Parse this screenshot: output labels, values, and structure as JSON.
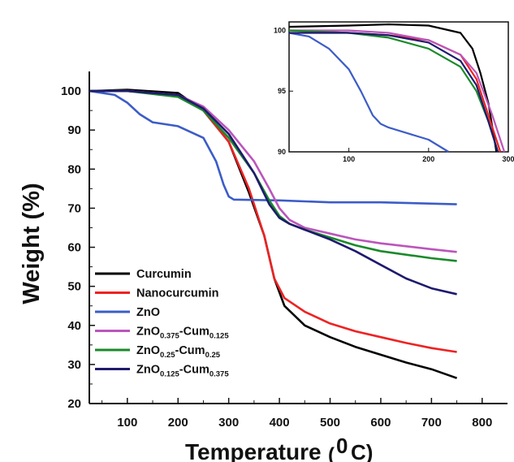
{
  "chart_data": [
    {
      "type": "line",
      "xlabel": "Temperature",
      "xlabel_unit": "(0C)",
      "ylabel": "Weight (%)",
      "xlim": [
        25,
        850
      ],
      "ylim": [
        20,
        105
      ],
      "x_ticks": [
        "100",
        "200",
        "300",
        "400",
        "500",
        "600",
        "700",
        "800"
      ],
      "y_ticks": [
        "20",
        "30",
        "40",
        "50",
        "60",
        "70",
        "80",
        "90",
        "100"
      ],
      "legend_position": "bottom-left",
      "series": [
        {
          "name": "Curcumin",
          "color": "#000000",
          "points": [
            [
              25,
              100
            ],
            [
              100,
              100.3
            ],
            [
              200,
              99.5
            ],
            [
              250,
              95
            ],
            [
              300,
              87
            ],
            [
              340,
              74
            ],
            [
              370,
              63
            ],
            [
              390,
              52
            ],
            [
              410,
              45
            ],
            [
              450,
              40
            ],
            [
              500,
              37
            ],
            [
              550,
              34.5
            ],
            [
              600,
              32.5
            ],
            [
              650,
              30.5
            ],
            [
              700,
              28.8
            ],
            [
              750,
              26.5
            ]
          ]
        },
        {
          "name": "Nanocurcumin",
          "color": "#ee2222",
          "points": [
            [
              25,
              100
            ],
            [
              100,
              100
            ],
            [
              200,
              99
            ],
            [
              250,
              95
            ],
            [
              300,
              87
            ],
            [
              340,
              75
            ],
            [
              370,
              63
            ],
            [
              390,
              52
            ],
            [
              410,
              47
            ],
            [
              450,
              43.5
            ],
            [
              500,
              40.5
            ],
            [
              550,
              38.5
            ],
            [
              600,
              37
            ],
            [
              650,
              35.5
            ],
            [
              700,
              34.2
            ],
            [
              750,
              33.2
            ]
          ]
        },
        {
          "name": "ZnO",
          "color": "#3c5cc8",
          "points": [
            [
              25,
              100
            ],
            [
              75,
              99
            ],
            [
              100,
              97
            ],
            [
              125,
              94
            ],
            [
              150,
              92
            ],
            [
              200,
              91
            ],
            [
              250,
              88
            ],
            [
              275,
              82
            ],
            [
              290,
              76
            ],
            [
              300,
              73
            ],
            [
              310,
              72.2
            ],
            [
              400,
              72
            ],
            [
              500,
              71.5
            ],
            [
              600,
              71.5
            ],
            [
              750,
              71
            ]
          ]
        },
        {
          "name": "ZnO0.375-Cum0.125",
          "color": "#bb55bb",
          "points": [
            [
              25,
              100
            ],
            [
              100,
              100
            ],
            [
              200,
              99
            ],
            [
              250,
              96
            ],
            [
              300,
              90
            ],
            [
              350,
              82
            ],
            [
              380,
              75
            ],
            [
              400,
              70
            ],
            [
              420,
              67
            ],
            [
              450,
              65
            ],
            [
              500,
              63.5
            ],
            [
              550,
              62
            ],
            [
              600,
              61
            ],
            [
              700,
              59.5
            ],
            [
              750,
              58.8
            ]
          ]
        },
        {
          "name": "ZnO0.25-Cum0.25",
          "color": "#1a8a2a",
          "points": [
            [
              25,
              100
            ],
            [
              100,
              100
            ],
            [
              200,
              98.5
            ],
            [
              250,
              95
            ],
            [
              300,
              88
            ],
            [
              350,
              79
            ],
            [
              380,
              72
            ],
            [
              400,
              68
            ],
            [
              420,
              66
            ],
            [
              450,
              64.5
            ],
            [
              500,
              62.5
            ],
            [
              550,
              60.5
            ],
            [
              600,
              59
            ],
            [
              700,
              57.2
            ],
            [
              750,
              56.5
            ]
          ]
        },
        {
          "name": "ZnO0.125-Cum0.375",
          "color": "#1e1a6e",
          "points": [
            [
              25,
              100
            ],
            [
              100,
              100
            ],
            [
              200,
              99
            ],
            [
              250,
              95.5
            ],
            [
              300,
              89
            ],
            [
              350,
              79
            ],
            [
              380,
              71
            ],
            [
              400,
              67.5
            ],
            [
              420,
              66
            ],
            [
              450,
              64.5
            ],
            [
              500,
              62
            ],
            [
              550,
              59
            ],
            [
              600,
              55.5
            ],
            [
              650,
              52
            ],
            [
              700,
              49.5
            ],
            [
              750,
              48
            ]
          ]
        }
      ]
    },
    {
      "type": "line",
      "title": "",
      "xlim": [
        25,
        300
      ],
      "ylim": [
        90,
        100.7
      ],
      "x_ticks": [
        "100",
        "200",
        "300"
      ],
      "y_ticks": [
        "90",
        "95",
        "100"
      ],
      "series": [
        {
          "name": "Curcumin",
          "color": "#000000",
          "points": [
            [
              25,
              100.3
            ],
            [
              100,
              100.4
            ],
            [
              150,
              100.5
            ],
            [
              200,
              100.4
            ],
            [
              240,
              99.8
            ],
            [
              255,
              98.5
            ],
            [
              265,
              96.5
            ],
            [
              275,
              94
            ],
            [
              285,
              90
            ]
          ]
        },
        {
          "name": "Nanocurcumin",
          "color": "#ee2222",
          "points": [
            [
              25,
              100
            ],
            [
              100,
              99.8
            ],
            [
              150,
              99.6
            ],
            [
              200,
              99.2
            ],
            [
              240,
              98
            ],
            [
              260,
              96
            ],
            [
              275,
              93
            ],
            [
              290,
              90
            ]
          ]
        },
        {
          "name": "ZnO",
          "color": "#3c5cc8",
          "points": [
            [
              25,
              99.8
            ],
            [
              50,
              99.5
            ],
            [
              75,
              98.5
            ],
            [
              100,
              96.8
            ],
            [
              115,
              95
            ],
            [
              130,
              93
            ],
            [
              140,
              92.3
            ],
            [
              150,
              92
            ],
            [
              175,
              91.5
            ],
            [
              200,
              91
            ],
            [
              220,
              90.2
            ],
            [
              225,
              90
            ]
          ]
        },
        {
          "name": "ZnO0.375-Cum0.125",
          "color": "#bb55bb",
          "points": [
            [
              25,
              100
            ],
            [
              100,
              100
            ],
            [
              150,
              99.8
            ],
            [
              200,
              99.2
            ],
            [
              240,
              98
            ],
            [
              260,
              96.5
            ],
            [
              280,
              93
            ],
            [
              295,
              90
            ]
          ]
        },
        {
          "name": "ZnO0.25-Cum0.25",
          "color": "#1a8a2a",
          "points": [
            [
              25,
              100
            ],
            [
              100,
              99.8
            ],
            [
              150,
              99.4
            ],
            [
              200,
              98.5
            ],
            [
              240,
              97
            ],
            [
              260,
              95
            ],
            [
              275,
              92.5
            ],
            [
              287,
              90
            ]
          ]
        },
        {
          "name": "ZnO0.125-Cum0.375",
          "color": "#1e1a6e",
          "points": [
            [
              25,
              99.8
            ],
            [
              100,
              99.8
            ],
            [
              150,
              99.6
            ],
            [
              200,
              99
            ],
            [
              240,
              97.5
            ],
            [
              260,
              95.5
            ],
            [
              275,
              92.5
            ],
            [
              287,
              90
            ]
          ]
        }
      ]
    }
  ],
  "legend": [
    {
      "base": "Curcumin",
      "color": "#000000"
    },
    {
      "base": "Nanocurcumin",
      "color": "#ee2222"
    },
    {
      "base": "ZnO",
      "color": "#3c5cc8"
    },
    {
      "base": "ZnO",
      "sub1": "0.375",
      "mid": "-Cum",
      "sub2": "0.125",
      "color": "#bb55bb"
    },
    {
      "base": "ZnO",
      "sub1": "0.25",
      "mid": "-Cum",
      "sub2": "0.25",
      "color": "#1a8a2a"
    },
    {
      "base": "ZnO",
      "sub1": "0.125",
      "mid": "-Cum",
      "sub2": "0.375",
      "color": "#1e1a6e"
    }
  ]
}
